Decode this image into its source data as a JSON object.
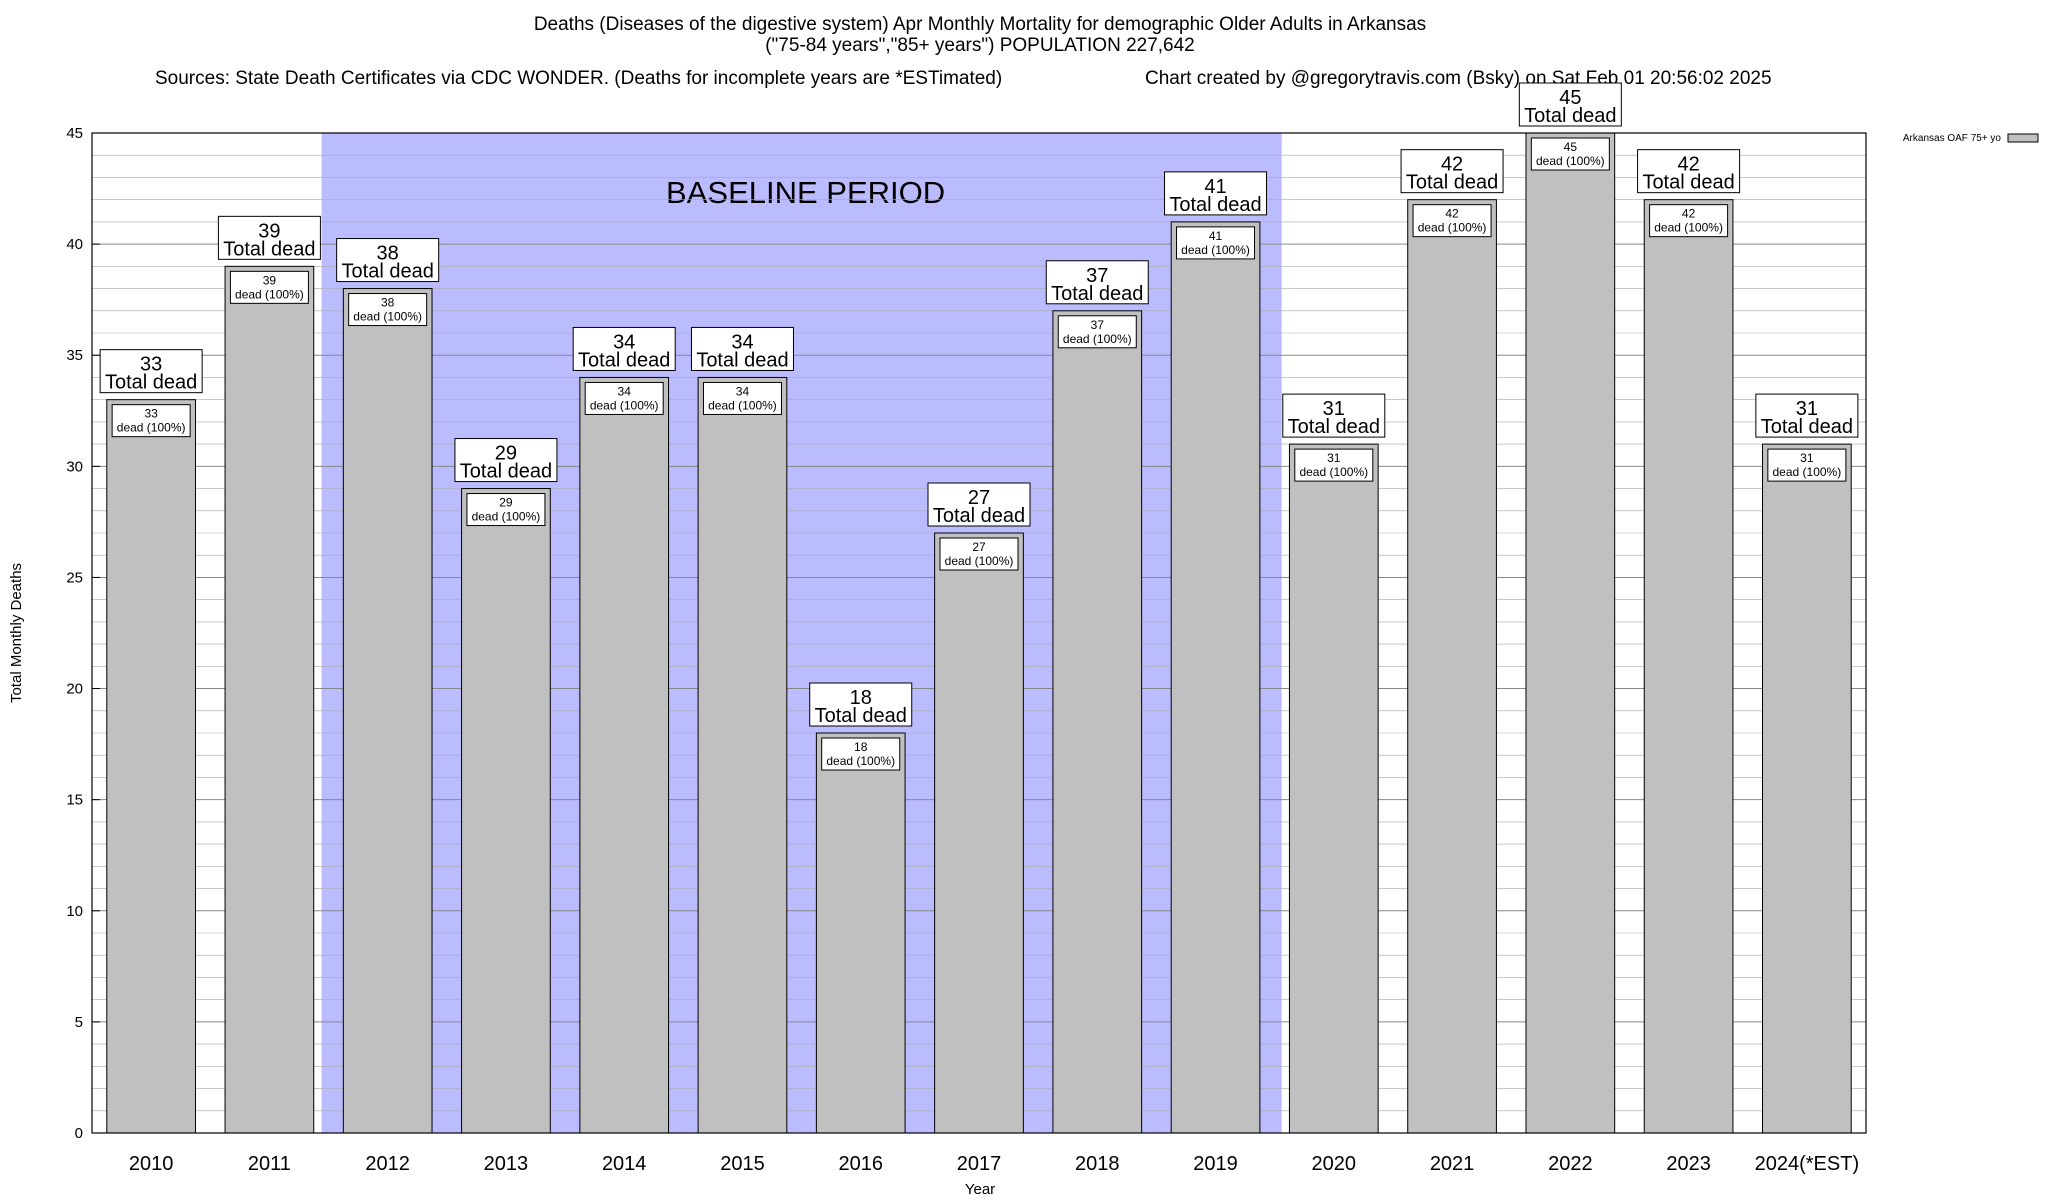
{
  "chart_data": {
    "type": "bar",
    "title": "Deaths (Diseases of the digestive system) Apr Monthly Mortality for demographic Older Adults in Arkansas",
    "subtitle": "(\"75-84 years\",\"85+ years\") POPULATION 227,642",
    "sources": "Sources: State Death Certificates via CDC WONDER. (Deaths for incomplete years are *ESTimated)",
    "credit": "Chart created by @gregorytravis.com (Bsky) on Sat Feb 01 20:56:02 2025",
    "xlabel": "Year",
    "ylabel": "Total Monthly Deaths",
    "ylim": [
      0,
      45
    ],
    "yticks": [
      "0",
      "5",
      "10",
      "15",
      "20",
      "25",
      "30",
      "35",
      "40",
      "45"
    ],
    "grid": true,
    "legend_position": "top-right",
    "categories": [
      "2010",
      "2011",
      "2012",
      "2013",
      "2014",
      "2015",
      "2016",
      "2017",
      "2018",
      "2019",
      "2020",
      "2021",
      "2022",
      "2023",
      "2024(*EST)"
    ],
    "series": [
      {
        "name": "Arkansas OAF 75+ yo",
        "values": [
          33,
          39,
          38,
          29,
          34,
          34,
          18,
          27,
          37,
          41,
          31,
          42,
          45,
          42,
          31
        ]
      }
    ],
    "total_label_suffix": "Total dead",
    "inner_label_suffix": "dead (100%)",
    "baseline": {
      "label": "BASELINE PERIOD",
      "start_category": "2012",
      "end_category": "2019"
    },
    "colors": {
      "bar_fill": "#c0c0c0",
      "baseline_band": "#bbbbff",
      "grid": "#aaaaaa"
    }
  }
}
